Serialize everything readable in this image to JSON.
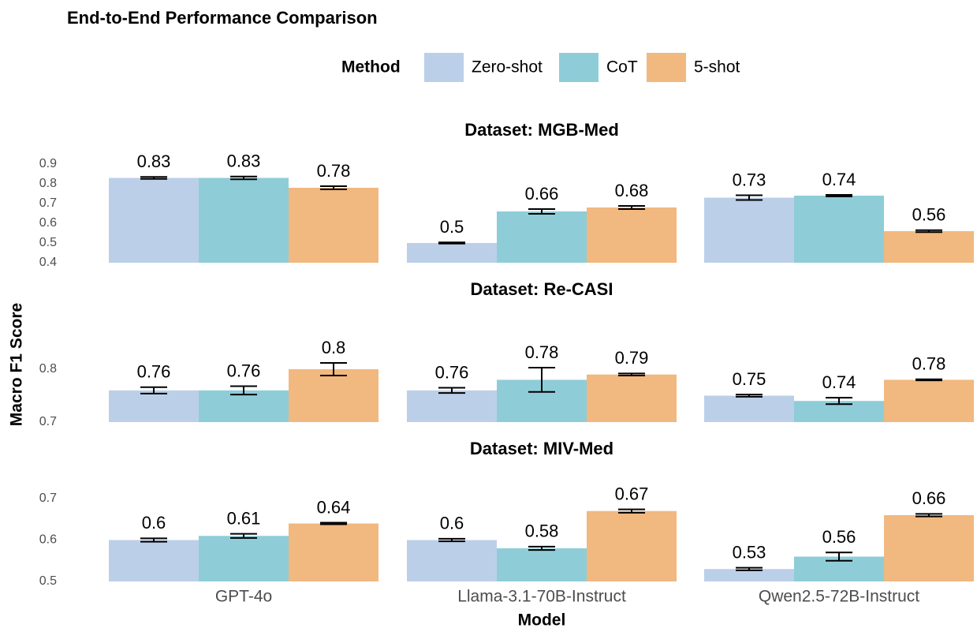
{
  "title": "End-to-End Performance Comparison",
  "legend_title": "Method",
  "x_label": "Model",
  "y_label": "Macro F1 Score",
  "chart_data": [
    {
      "type": "bar",
      "title": "Dataset: MGB-Med",
      "categories": [
        "GPT-4o",
        "Llama-3.1-70B-Instruct",
        "Qwen2.5-72B-Instruct"
      ],
      "series": [
        {
          "name": "Zero-shot",
          "color": "#bccfe9",
          "values": [
            0.83,
            0.5,
            0.73
          ],
          "errors": [
            0.005,
            0.003,
            0.012
          ]
        },
        {
          "name": "CoT",
          "color": "#8ecdd8",
          "values": [
            0.83,
            0.66,
            0.74
          ],
          "errors": [
            0.007,
            0.012,
            0.004
          ]
        },
        {
          "name": "5-shot",
          "color": "#f1b880",
          "values": [
            0.78,
            0.68,
            0.56
          ],
          "errors": [
            0.008,
            0.008,
            0.005
          ]
        }
      ],
      "ylim": [
        0.4,
        0.9
      ],
      "yticks": [
        0.4,
        0.5,
        0.6,
        0.7,
        0.8,
        0.9
      ]
    },
    {
      "type": "bar",
      "title": "Dataset: Re-CASI",
      "categories": [
        "GPT-4o",
        "Llama-3.1-70B-Instruct",
        "Qwen2.5-72B-Instruct"
      ],
      "series": [
        {
          "name": "Zero-shot",
          "color": "#bccfe9",
          "values": [
            0.76,
            0.76,
            0.75
          ],
          "errors": [
            0.006,
            0.005,
            0.002
          ]
        },
        {
          "name": "CoT",
          "color": "#8ecdd8",
          "values": [
            0.76,
            0.78,
            0.74
          ],
          "errors": [
            0.008,
            0.023,
            0.006
          ]
        },
        {
          "name": "5-shot",
          "color": "#f1b880",
          "values": [
            0.8,
            0.79,
            0.78
          ],
          "errors": [
            0.012,
            0.002,
            0.001
          ]
        }
      ],
      "ylim": [
        0.7,
        0.82
      ],
      "yticks": [
        0.7,
        0.8
      ]
    },
    {
      "type": "bar",
      "title": "Dataset: MIV-Med",
      "categories": [
        "GPT-4o",
        "Llama-3.1-70B-Instruct",
        "Qwen2.5-72B-Instruct"
      ],
      "series": [
        {
          "name": "Zero-shot",
          "color": "#bccfe9",
          "values": [
            0.6,
            0.6,
            0.53
          ],
          "errors": [
            0.004,
            0.003,
            0.003
          ]
        },
        {
          "name": "CoT",
          "color": "#8ecdd8",
          "values": [
            0.61,
            0.58,
            0.56
          ],
          "errors": [
            0.005,
            0.004,
            0.01
          ]
        },
        {
          "name": "5-shot",
          "color": "#f1b880",
          "values": [
            0.64,
            0.67,
            0.66
          ],
          "errors": [
            0.002,
            0.004,
            0.003
          ]
        }
      ],
      "ylim": [
        0.5,
        0.7
      ],
      "yticks": [
        0.5,
        0.6,
        0.7
      ]
    }
  ]
}
